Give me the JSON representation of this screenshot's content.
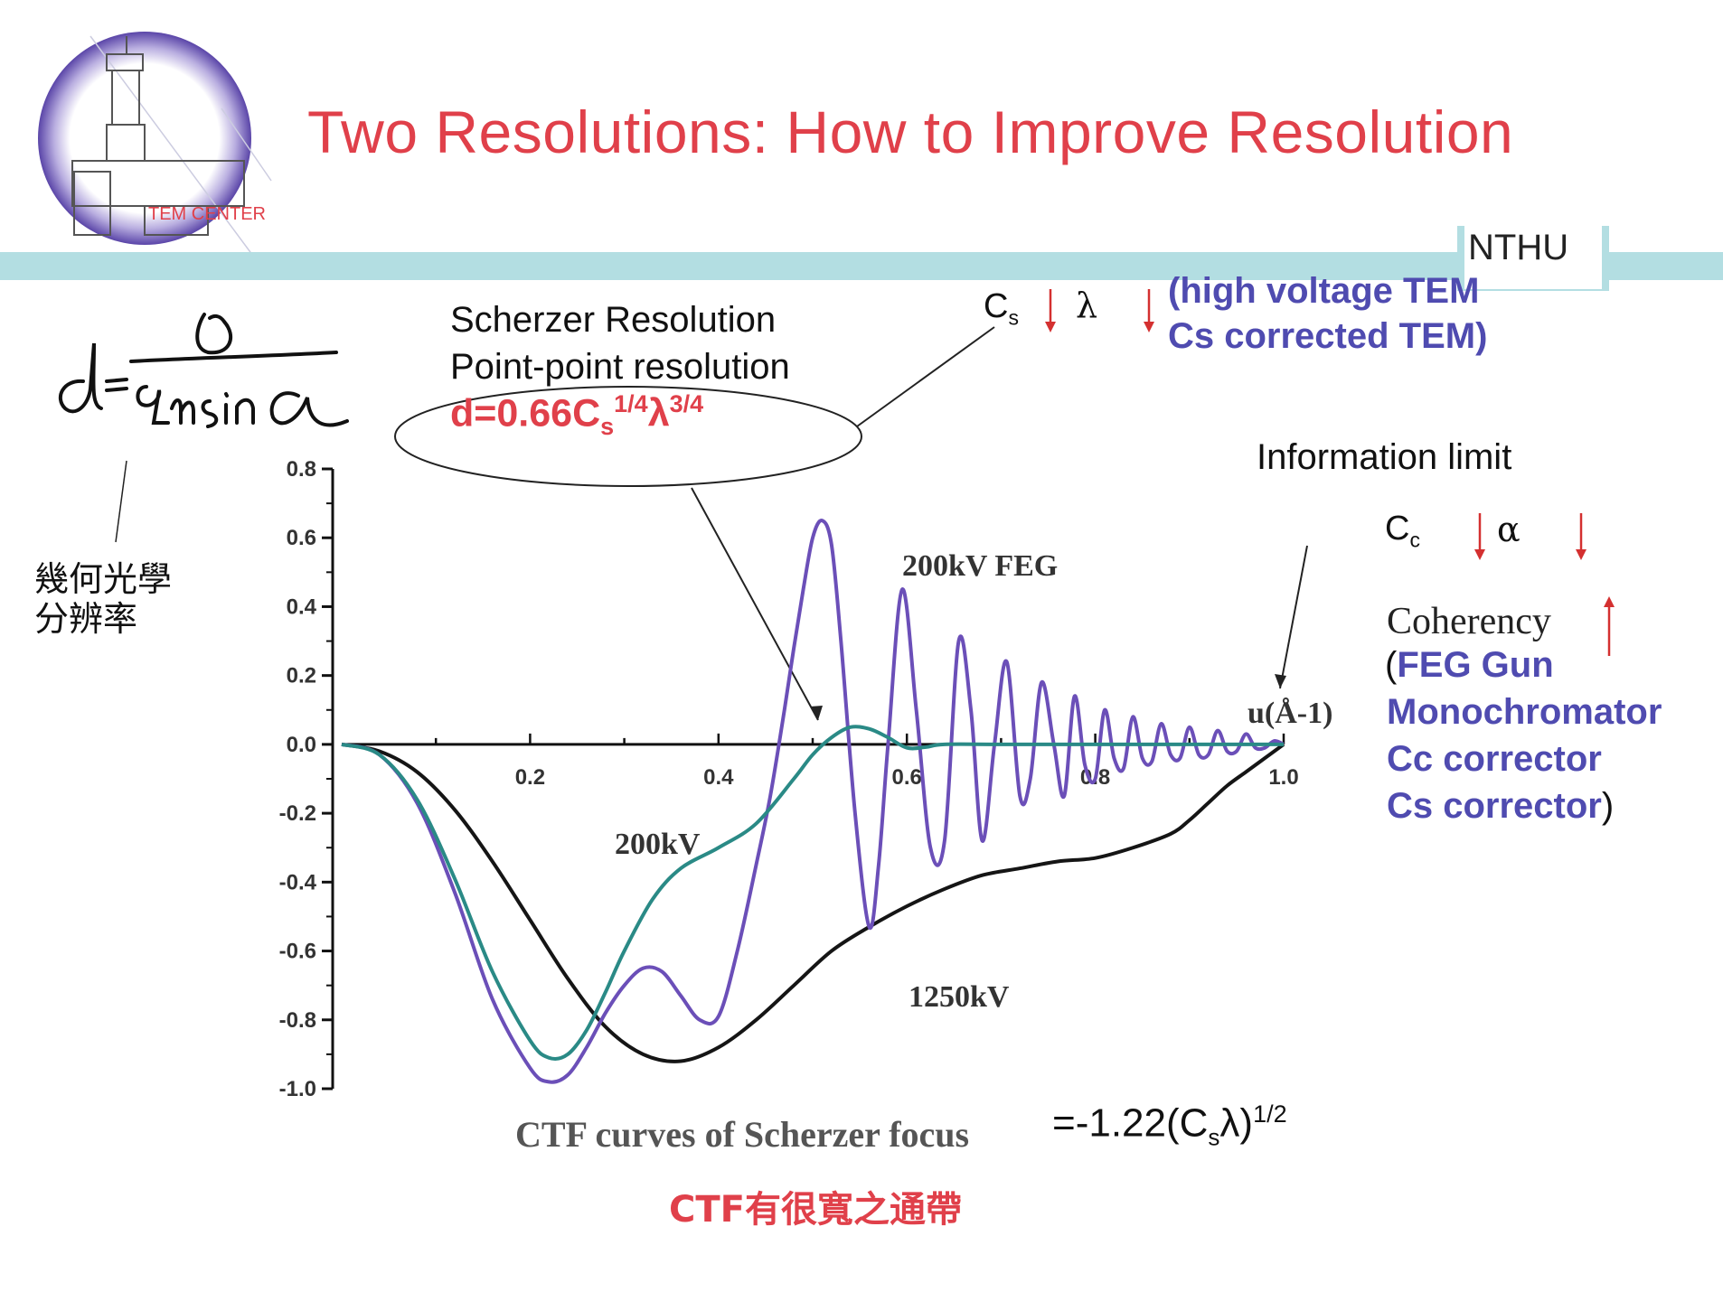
{
  "header": {
    "title": "Two Resolutions: How to Improve Resolution",
    "logo_text": "TEM CENTER",
    "org_tag": "NTHU"
  },
  "left_notes": {
    "formula_handwritten": "d = λ / 2n sin α",
    "geometric_label_line1": "幾何光學",
    "geometric_label_line2": "分辨率"
  },
  "scherzer": {
    "line1": "Scherzer Resolution",
    "line2": "Point-point resolution",
    "formula_prefix": "d=0.66C",
    "formula_sub": "s",
    "formula_sup1": "1/4",
    "formula_lambda": "λ",
    "formula_sup2": "3/4"
  },
  "improve_point": {
    "cs_label": "C",
    "cs_sub": "s",
    "lambda": "λ",
    "arrow_down": "↓",
    "line1": "(high voltage TEM",
    "line2": "Cs corrected TEM)"
  },
  "improve_info": {
    "title": "Information limit",
    "cc_label": "C",
    "cc_sub": "c",
    "alpha": "α",
    "arrow_down": "↓",
    "arrow_up": "↑",
    "coherency": "Coherency",
    "paren_open": "(",
    "items": [
      "FEG Gun",
      "Monochromator",
      "Cc corrector",
      "Cs corrector"
    ],
    "paren_close": ")"
  },
  "footer": {
    "ctf_caption": "CTF curves of Scherzer focus",
    "eq_sign": "=",
    "focus_prefix": "-1.22(C",
    "focus_sub": "s",
    "focus_lambda": "λ)",
    "focus_sup": "1/2",
    "passband": "CTF有很寬之通帶"
  },
  "colors": {
    "title_red": "#e0404a",
    "accent_blue": "#4f4bb0",
    "band": "#b3dee2",
    "arrow_red": "#d43030"
  },
  "chart_data": {
    "type": "line",
    "title": "CTF curves of Scherzer focus",
    "xlabel": "u(Å-1)",
    "ylabel": "",
    "xlim": [
      0,
      1.0
    ],
    "ylim": [
      -1.0,
      0.8
    ],
    "x_ticks": [
      "0.2",
      "0.4",
      "0.6",
      "0.8",
      "1.0"
    ],
    "x_tick_values": [
      0.2,
      0.4,
      0.6,
      0.8,
      1.0
    ],
    "y_ticks": [
      "0.8",
      "0.6",
      "0.4",
      "0.2",
      "0.0",
      "-0.2",
      "-0.4",
      "-0.6",
      "-0.8",
      "-1.0"
    ],
    "y_tick_values": [
      0.8,
      0.6,
      0.4,
      0.2,
      0.0,
      -0.2,
      -0.4,
      -0.6,
      -0.8,
      -1.0
    ],
    "series": [
      {
        "name": "200kV",
        "color": "#2a8a86",
        "x": [
          0.0,
          0.04,
          0.08,
          0.12,
          0.16,
          0.2,
          0.22,
          0.24,
          0.26,
          0.28,
          0.3,
          0.33,
          0.36,
          0.4,
          0.44,
          0.48,
          0.5,
          0.52,
          0.54,
          0.56,
          0.58,
          0.6,
          0.62,
          0.64,
          0.7,
          0.8,
          0.9,
          1.0
        ],
        "values": [
          0.0,
          -0.03,
          -0.16,
          -0.39,
          -0.66,
          -0.86,
          -0.91,
          -0.9,
          -0.83,
          -0.72,
          -0.6,
          -0.45,
          -0.36,
          -0.3,
          -0.23,
          -0.1,
          -0.03,
          0.02,
          0.05,
          0.045,
          0.02,
          -0.01,
          -0.008,
          0.0,
          0.0,
          0.0,
          0.0,
          0.0
        ]
      },
      {
        "name": "200kV FEG",
        "color": "#6b4fb8",
        "x": [
          0.0,
          0.04,
          0.08,
          0.12,
          0.16,
          0.2,
          0.22,
          0.24,
          0.26,
          0.28,
          0.3,
          0.32,
          0.34,
          0.36,
          0.38,
          0.4,
          0.42,
          0.44,
          0.455,
          0.47,
          0.48,
          0.49,
          0.5,
          0.51,
          0.52,
          0.53,
          0.545,
          0.56,
          0.57,
          0.58,
          0.595,
          0.61,
          0.625,
          0.64,
          0.655,
          0.668,
          0.68,
          0.693,
          0.706,
          0.72,
          0.731,
          0.743,
          0.756,
          0.767,
          0.778,
          0.789,
          0.8,
          0.81,
          0.82,
          0.83,
          0.84,
          0.85,
          0.86,
          0.87,
          0.88,
          0.89,
          0.9,
          0.91,
          0.92,
          0.93,
          0.94,
          0.95,
          0.96,
          0.97,
          0.98,
          0.99,
          1.0
        ],
        "values": [
          0.0,
          -0.03,
          -0.17,
          -0.43,
          -0.74,
          -0.94,
          -0.98,
          -0.96,
          -0.88,
          -0.78,
          -0.7,
          -0.65,
          -0.66,
          -0.73,
          -0.8,
          -0.79,
          -0.6,
          -0.35,
          -0.15,
          0.1,
          0.28,
          0.45,
          0.6,
          0.65,
          0.58,
          0.3,
          -0.2,
          -0.53,
          -0.35,
          0.0,
          0.45,
          0.1,
          -0.3,
          -0.28,
          0.3,
          0.1,
          -0.28,
          0.0,
          0.24,
          -0.15,
          -0.1,
          0.18,
          0.0,
          -0.15,
          0.14,
          -0.06,
          -0.1,
          0.1,
          -0.04,
          -0.07,
          0.08,
          -0.04,
          -0.05,
          0.06,
          -0.03,
          -0.04,
          0.05,
          -0.03,
          -0.03,
          0.04,
          -0.02,
          -0.02,
          0.03,
          -0.01,
          -0.01,
          0.01,
          0.0
        ]
      },
      {
        "name": "1250kV",
        "color": "#151515",
        "x": [
          0.0,
          0.04,
          0.08,
          0.12,
          0.16,
          0.2,
          0.24,
          0.28,
          0.32,
          0.36,
          0.4,
          0.44,
          0.48,
          0.52,
          0.56,
          0.6,
          0.64,
          0.68,
          0.72,
          0.76,
          0.8,
          0.84,
          0.88,
          0.9,
          0.92,
          0.94,
          0.96,
          0.98,
          1.0
        ],
        "values": [
          0.0,
          -0.02,
          -0.08,
          -0.19,
          -0.34,
          -0.51,
          -0.68,
          -0.82,
          -0.9,
          -0.92,
          -0.88,
          -0.8,
          -0.7,
          -0.6,
          -0.53,
          -0.47,
          -0.42,
          -0.38,
          -0.36,
          -0.34,
          -0.33,
          -0.3,
          -0.26,
          -0.22,
          -0.17,
          -0.12,
          -0.08,
          -0.04,
          0.0
        ]
      }
    ],
    "annotations": [
      "200kV FEG",
      "200kV",
      "1250kV"
    ]
  }
}
